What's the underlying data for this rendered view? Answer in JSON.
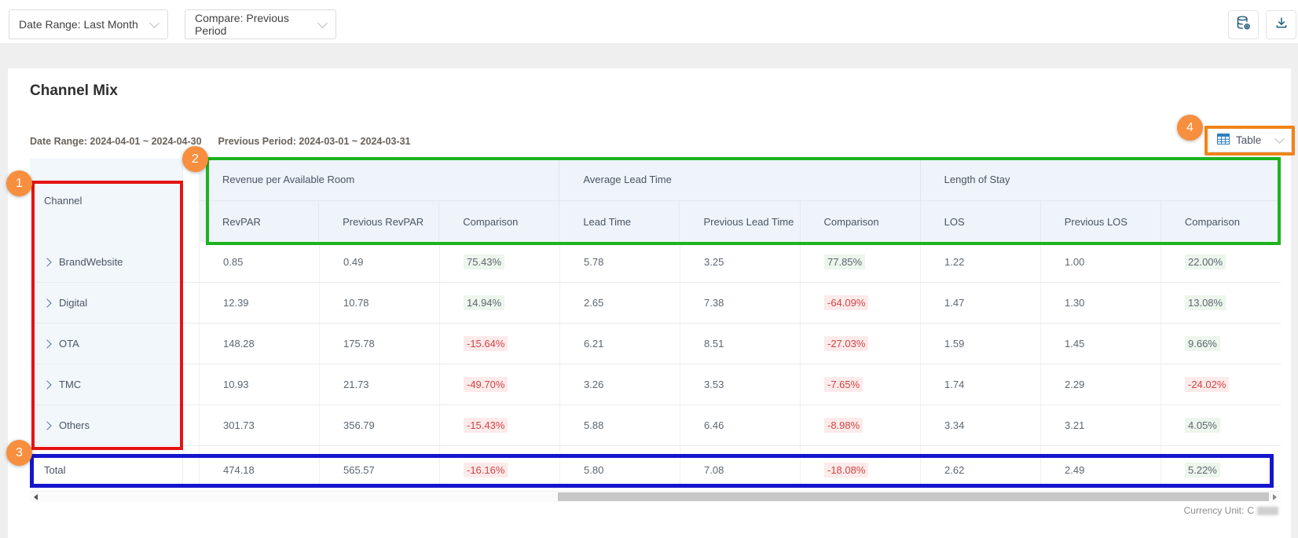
{
  "topbar": {
    "date_range_dropdown": "Date Range: Last Month",
    "compare_dropdown": "Compare: Previous Period",
    "icons": [
      "database-settings-icon",
      "download-icon"
    ]
  },
  "page": {
    "title": "Channel Mix",
    "meta": {
      "date_range_label": "Date Range:",
      "date_range_value": "2024-04-01 ~ 2024-04-30",
      "previous_period_label": "Previous Period:",
      "previous_period_value": "2024-03-01 ~ 2024-03-31"
    },
    "view_selector": {
      "value": "Table",
      "icon": "table-icon"
    }
  },
  "table": {
    "row_header": "Channel",
    "column_groups": [
      {
        "label": "Revenue per Available Room",
        "columns": [
          "RevPAR",
          "Previous RevPAR",
          "Comparison"
        ]
      },
      {
        "label": "Average Lead Time",
        "columns": [
          "Lead Time",
          "Previous Lead Time",
          "Comparison"
        ]
      },
      {
        "label": "Length of Stay",
        "columns": [
          "LOS",
          "Previous LOS",
          "Comparison"
        ]
      }
    ],
    "rows": [
      {
        "channel": "BrandWebsite",
        "values": [
          "0.85",
          "0.49",
          "75.43%",
          "5.78",
          "3.25",
          "77.85%",
          "1.22",
          "1.00",
          "22.00%"
        ]
      },
      {
        "channel": "Digital",
        "values": [
          "12.39",
          "10.78",
          "14.94%",
          "2.65",
          "7.38",
          "-64.09%",
          "1.47",
          "1.30",
          "13.08%"
        ]
      },
      {
        "channel": "OTA",
        "values": [
          "148.28",
          "175.78",
          "-15.64%",
          "6.21",
          "8.51",
          "-27.03%",
          "1.59",
          "1.45",
          "9.66%"
        ]
      },
      {
        "channel": "TMC",
        "values": [
          "10.93",
          "21.73",
          "-49.70%",
          "3.26",
          "3.53",
          "-7.65%",
          "1.74",
          "2.29",
          "-24.02%"
        ]
      },
      {
        "channel": "Others",
        "values": [
          "301.73",
          "356.79",
          "-15.43%",
          "5.88",
          "6.46",
          "-8.98%",
          "3.34",
          "3.21",
          "4.05%"
        ]
      }
    ],
    "total": {
      "label": "Total",
      "values": [
        "474.18",
        "565.57",
        "-16.16%",
        "5.80",
        "7.08",
        "-18.08%",
        "2.62",
        "2.49",
        "5.22%"
      ]
    }
  },
  "footer": {
    "currency_label": "Currency Unit:",
    "currency_value": "C",
    "currency_redacted": true
  },
  "annotations": {
    "steps": [
      "1",
      "2",
      "3",
      "4"
    ]
  },
  "colors": {
    "annotation_red": "#e51414",
    "annotation_green": "#1db31d",
    "annotation_blue": "#1515cd",
    "annotation_orange": "#f08419",
    "badge_orange": "#f78f3f",
    "negative_text": "#cf4545",
    "negative_bg": "#fdeaea",
    "positive_bg": "#ecf6ec",
    "header_bg": "#eef4f9",
    "fixed_column_bg": "#f2f7fb",
    "toolbar_icon_blue": "#1f5c7d",
    "table_icon_blue": "#2f7fc0"
  }
}
